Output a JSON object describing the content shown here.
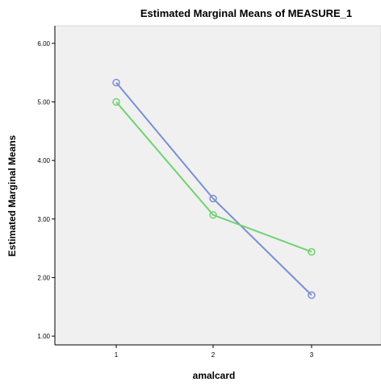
{
  "chart_data": {
    "type": "line",
    "title": "Estimated Marginal Means of MEASURE_1",
    "xlabel": "amalcard",
    "ylabel": "Estimated Marginal Means",
    "categories": [
      "1",
      "2",
      "3"
    ],
    "ylim": [
      0.85,
      6.3
    ],
    "yticks": [
      "1.00",
      "2.00",
      "3.00",
      "4.00",
      "5.00",
      "6.00"
    ],
    "grid": false,
    "plot_background": "#f0f0f0",
    "series": [
      {
        "color": "#7b8fd4",
        "marker": "circle",
        "values": [
          5.33,
          3.35,
          1.7
        ]
      },
      {
        "color": "#6fd36f",
        "marker": "circle",
        "values": [
          5.0,
          3.07,
          2.44
        ]
      }
    ]
  }
}
